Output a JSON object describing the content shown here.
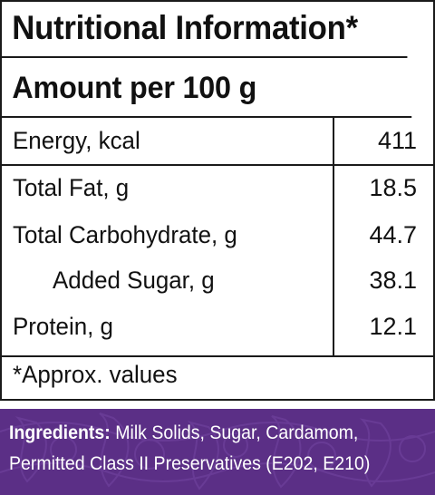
{
  "nutrition": {
    "title": "Nutritional Information*",
    "serving": "Amount per 100 g",
    "rows": [
      {
        "label": "Energy, kcal",
        "value": "411"
      },
      {
        "label": "Total Fat, g",
        "value": "18.5"
      },
      {
        "label": "Total Carbohydrate, g",
        "value": "44.7"
      },
      {
        "label": "Added Sugar, g",
        "value": "38.1"
      },
      {
        "label": "Protein, g",
        "value": "12.1"
      }
    ],
    "footnote": "*Approx. values"
  },
  "ingredients": {
    "heading": "Ingredients:",
    "line1": "Milk Solids, Sugar, Cardamom,",
    "line2": "Permitted Class II Preservatives (E202, E210)",
    "background_color": "#5b2f86"
  }
}
